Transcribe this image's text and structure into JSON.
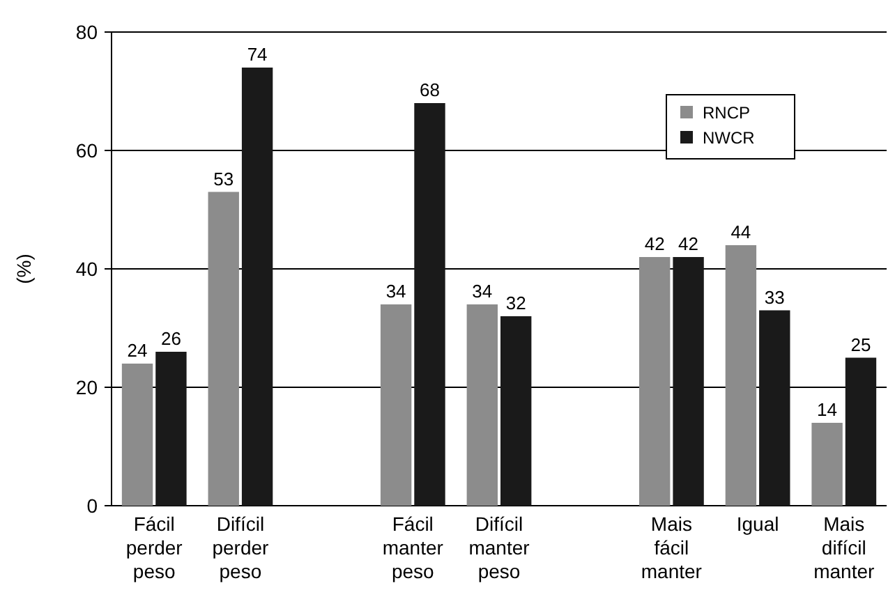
{
  "chart_data": {
    "type": "bar",
    "ylabel": "(%)",
    "categories": [
      "Fácil perder peso",
      "Difícil perder peso",
      null,
      "Fácil manter peso",
      "Difícil manter peso",
      null,
      "Mais fácil manter",
      "Igual",
      "Mais difícil manter"
    ],
    "series": [
      {
        "name": "RNCP",
        "color": "#8c8c8c",
        "values": [
          24,
          53,
          null,
          34,
          34,
          null,
          42,
          44,
          14
        ]
      },
      {
        "name": "NWCR",
        "color": "#1a1a1a",
        "values": [
          26,
          74,
          null,
          68,
          32,
          null,
          42,
          33,
          25
        ]
      }
    ],
    "ylim": [
      0,
      80
    ],
    "yticks": [
      0,
      20,
      40,
      60,
      80
    ],
    "grid": "y",
    "legend": "top right",
    "data_labels": true
  }
}
